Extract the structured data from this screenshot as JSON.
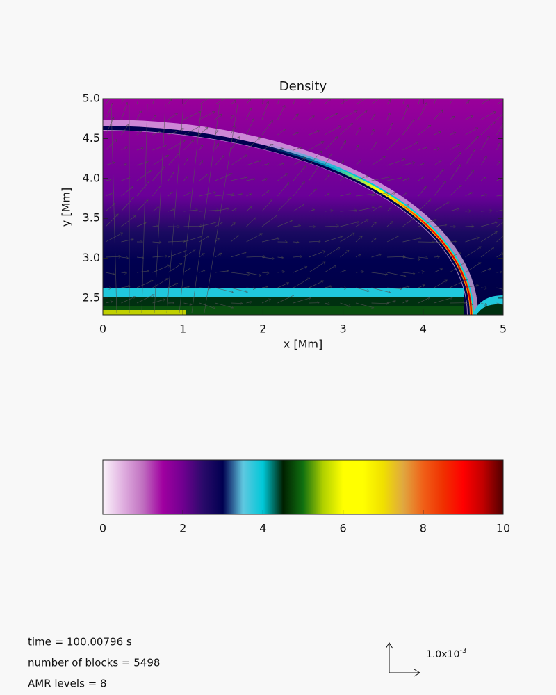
{
  "chart_data": {
    "type": "heatmap",
    "title": "Density",
    "x_label": "x [Mm]",
    "y_label": "y [Mm]",
    "xlim": [
      0,
      5
    ],
    "ylim": [
      2.29,
      5.0
    ],
    "xticks": [
      0,
      1,
      2,
      3,
      4,
      5
    ],
    "yticks": [
      2.5,
      {
        "value": 3,
        "label": "3.0"
      },
      3.5,
      {
        "value": 4,
        "label": "4.0"
      },
      4.5,
      {
        "value": 5,
        "label": "5.0"
      }
    ],
    "colorbar": {
      "lim": [
        0,
        10
      ],
      "ticks": [
        0,
        2,
        4,
        6,
        8,
        10
      ],
      "colors": [
        "#fbf3fb",
        "#e0b0e0",
        "#c070c0",
        "#a000a0",
        "#700090",
        "#2a0a6a",
        "#000050",
        "#60c8e0",
        "#00c8d8",
        "#002000",
        "#107010",
        "#b0d000",
        "#ffff00",
        "#ffff00",
        "#f0e000",
        "#e0a840",
        "#f06018",
        "#f03000",
        "#ff0000",
        "#c00000",
        "#500000"
      ]
    },
    "time": "time = 100.00796 s",
    "blocks": "number of blocks =    5498",
    "amr_levels": "AMR levels =      8",
    "vector_scale": {
      "base": "1.0x10",
      "exponent": "-3"
    }
  }
}
